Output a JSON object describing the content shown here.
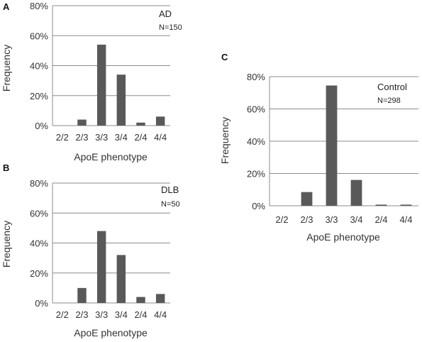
{
  "chart_data": [
    {
      "panel": "A",
      "type": "bar",
      "categories": [
        "2/2",
        "2/3",
        "3/3",
        "3/4",
        "2/4",
        "4/4"
      ],
      "values": [
        0,
        4,
        54,
        34,
        2,
        6
      ],
      "ylim": [
        0,
        80
      ],
      "yticks": [
        "0%",
        "20%",
        "40%",
        "60%",
        "80%"
      ],
      "xlabel": "ApoE phenotype",
      "ylabel": "Frequency",
      "group": "AD",
      "n": "N=150",
      "grid": true,
      "bar_color": "#595959"
    },
    {
      "panel": "B",
      "type": "bar",
      "categories": [
        "2/2",
        "2/3",
        "3/3",
        "3/4",
        "2/4",
        "4/4"
      ],
      "values": [
        0,
        10,
        48,
        32,
        4,
        6
      ],
      "ylim": [
        0,
        80
      ],
      "yticks": [
        "0%",
        "20%",
        "40%",
        "60%",
        "80%"
      ],
      "xlabel": "ApoE phenotype",
      "ylabel": "Frequency",
      "group": "DLB",
      "n": "N=50",
      "grid": true,
      "bar_color": "#595959"
    },
    {
      "panel": "C",
      "type": "bar",
      "categories": [
        "2/2",
        "2/3",
        "3/3",
        "3/4",
        "2/4",
        "4/4"
      ],
      "values": [
        0,
        8.5,
        74.5,
        16,
        0.7,
        0.7
      ],
      "ylim": [
        0,
        80
      ],
      "yticks": [
        "0%",
        "20%",
        "40%",
        "60%",
        "80%"
      ],
      "xlabel": "ApoE phenotype",
      "ylabel": "Frequency",
      "group": "Control",
      "n": "N=298",
      "grid": true,
      "bar_color": "#595959"
    }
  ],
  "colors": {
    "gridline": "#8c8c8c",
    "axis": "#8c8c8c"
  }
}
